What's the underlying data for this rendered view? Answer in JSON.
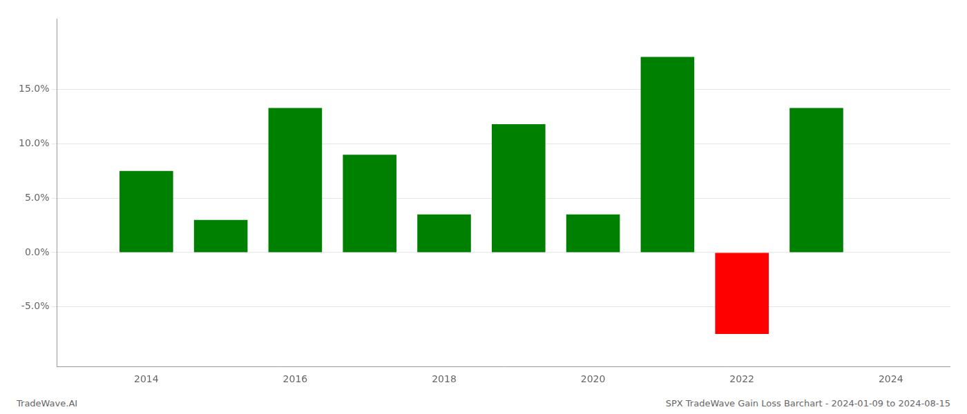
{
  "chart_data": {
    "type": "bar",
    "x": [
      2014,
      2015,
      2016,
      2017,
      2018,
      2019,
      2020,
      2021,
      2022,
      2023
    ],
    "values": [
      0.075,
      0.03,
      0.133,
      0.09,
      0.035,
      0.118,
      0.035,
      0.18,
      -0.075,
      0.133
    ],
    "colors": [
      "#008000",
      "#008000",
      "#008000",
      "#008000",
      "#008000",
      "#008000",
      "#008000",
      "#008000",
      "#ff0000",
      "#008000"
    ],
    "xlim": [
      2012.8,
      2024.8
    ],
    "xticks": [
      2014,
      2016,
      2018,
      2020,
      2022,
      2024
    ],
    "ylim": [
      -0.105,
      0.215
    ],
    "yticks": [
      {
        "value": -0.05,
        "label": "-5.0%"
      },
      {
        "value": 0.0,
        "label": "0.0%"
      },
      {
        "value": 0.05,
        "label": "5.0%"
      },
      {
        "value": 0.1,
        "label": "10.0%"
      },
      {
        "value": 0.15,
        "label": "15.0%"
      }
    ],
    "grid": true,
    "annotations": [
      "TradeWave.AI",
      "SPX TradeWave Gain Loss Barchart - 2024-01-09 to 2024-08-15"
    ]
  }
}
